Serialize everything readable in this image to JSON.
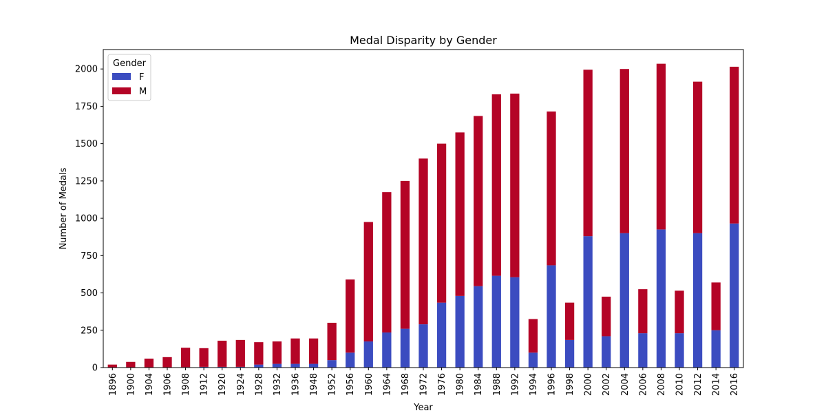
{
  "chart_data": {
    "type": "bar",
    "stacked": true,
    "title": "Medal Disparity by Gender",
    "xlabel": "Year",
    "ylabel": "Number of Medals",
    "ylim": [
      0,
      2130
    ],
    "yticks": [
      0,
      250,
      500,
      750,
      1000,
      1250,
      1500,
      1750,
      2000
    ],
    "grid": false,
    "legend": {
      "title": "Gender",
      "placement": "top-left"
    },
    "categories": [
      "1896",
      "1900",
      "1904",
      "1906",
      "1908",
      "1912",
      "1920",
      "1924",
      "1928",
      "1932",
      "1936",
      "1948",
      "1952",
      "1956",
      "1960",
      "1964",
      "1968",
      "1972",
      "1976",
      "1980",
      "1984",
      "1988",
      "1992",
      "1994",
      "1996",
      "1998",
      "2000",
      "2002",
      "2004",
      "2006",
      "2008",
      "2010",
      "2012",
      "2014",
      "2016"
    ],
    "series": [
      {
        "name": "F",
        "color": "#3b4cc0",
        "values": [
          0,
          2,
          2,
          2,
          3,
          5,
          5,
          5,
          20,
          25,
          25,
          25,
          50,
          100,
          175,
          235,
          260,
          290,
          435,
          480,
          545,
          615,
          605,
          100,
          685,
          185,
          880,
          210,
          900,
          230,
          925,
          230,
          900,
          250,
          965
        ]
      },
      {
        "name": "M",
        "color": "#b40426",
        "values": [
          20,
          36,
          58,
          68,
          130,
          125,
          175,
          180,
          150,
          150,
          170,
          170,
          250,
          490,
          800,
          940,
          990,
          1110,
          1065,
          1095,
          1140,
          1215,
          1230,
          225,
          1030,
          250,
          1115,
          265,
          1100,
          295,
          1110,
          285,
          1015,
          320,
          1050
        ]
      }
    ]
  }
}
